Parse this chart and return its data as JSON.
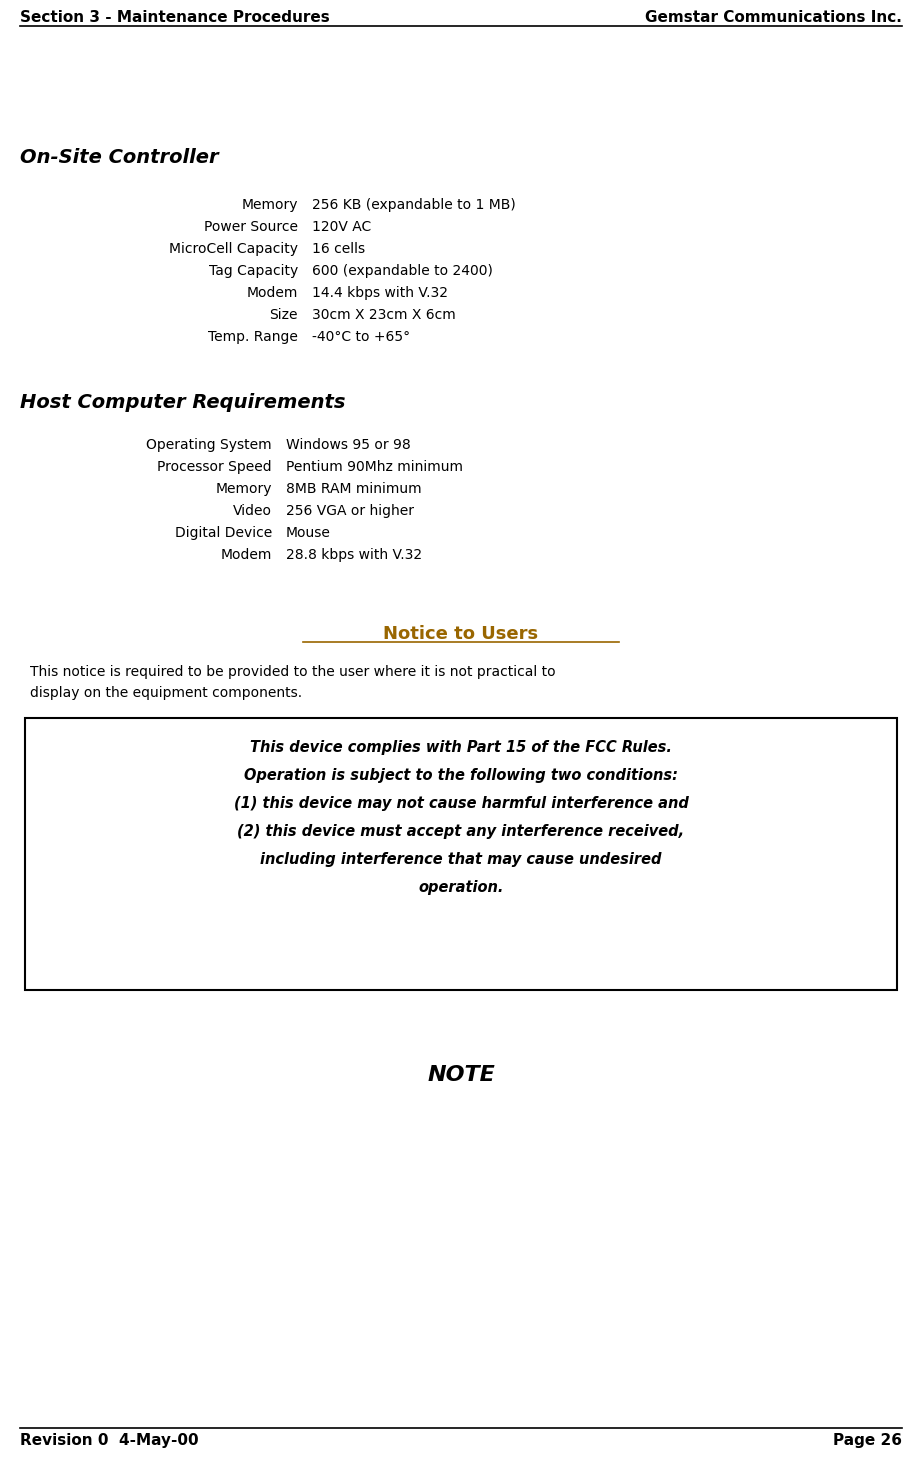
{
  "header_left": "Section 3 - Maintenance Procedures",
  "header_right": "Gemstar Communications Inc.",
  "footer_left": "Revision 0  4-May-00",
  "footer_right": "Page 26",
  "section1_title": "On-Site Controller",
  "section1_rows": [
    [
      "Memory",
      "256 KB (expandable to 1 MB)"
    ],
    [
      "Power Source",
      "120V AC"
    ],
    [
      "MicroCell Capacity",
      "16 cells"
    ],
    [
      "Tag Capacity",
      "600 (expandable to 2400)"
    ],
    [
      "Modem",
      "14.4 kbps with V.32"
    ],
    [
      "Size",
      "30cm X 23cm X 6cm"
    ],
    [
      "Temp. Range",
      "-40°C to +65°"
    ]
  ],
  "section2_title": "Host Computer Requirements",
  "section2_rows": [
    [
      "Operating System",
      "Windows 95 or 98"
    ],
    [
      "Processor Speed",
      "Pentium 90Mhz minimum"
    ],
    [
      "Memory",
      "8MB RAM minimum"
    ],
    [
      "Video",
      "256 VGA or higher"
    ],
    [
      "Digital Device",
      "Mouse"
    ],
    [
      "Modem",
      "28.8 kbps with V.32"
    ]
  ],
  "notice_title": "Notice to Users",
  "notice_body": "This notice is required to be provided to the user where it is not practical to\ndisplay on the equipment components.",
  "fcc_box_text": "This device complies with Part 15 of the FCC Rules.\nOperation is subject to the following two conditions:\n(1) this device may not cause harmful interference and\n(2) this device must accept any interference received,\nincluding interference that may cause undesired\noperation.",
  "note_label": "NOTE",
  "bg_color": "#ffffff",
  "text_color": "#000000",
  "notice_title_color": "#996600",
  "header_font_size": 11,
  "body_font_size": 10,
  "section_title_font_size": 14,
  "notice_title_font_size": 13,
  "note_font_size": 16,
  "fcc_font_size": 10.5
}
